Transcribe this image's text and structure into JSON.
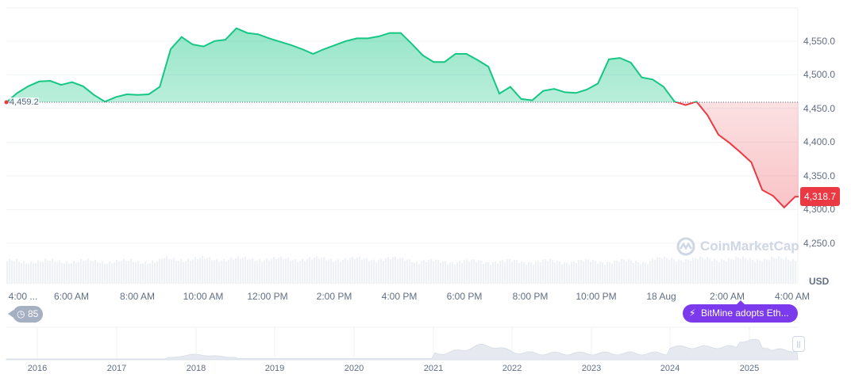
{
  "chart_data": {
    "type": "area",
    "currency_label": "USD",
    "baseline": {
      "value": 4459.2,
      "label": "4,459.2"
    },
    "current": {
      "value": 4318.7,
      "label": "4,318.7"
    },
    "y_ticks": [
      "4,550.0",
      "4,500.0",
      "4,450.0",
      "4,400.0",
      "4,350.0",
      "4,300.0",
      "4,250.0"
    ],
    "y_tick_values": [
      4550,
      4500,
      4450,
      4400,
      4350,
      4300,
      4250
    ],
    "x_ticks": [
      "4:00 ...",
      "6:00 AM",
      "8:00 AM",
      "10:00 AM",
      "12:00 PM",
      "2:00 PM",
      "4:00 PM",
      "6:00 PM",
      "8:00 PM",
      "10:00 PM",
      "18 Aug",
      "2:00 AM",
      "4:00 AM"
    ],
    "ylim": [
      4230,
      4580
    ],
    "grid": true,
    "colors": {
      "up": "#16c784",
      "down": "#ea3943",
      "grid": "#eff2f5",
      "volume": "#eff2f5"
    },
    "points": [
      [
        "03:30",
        4459
      ],
      [
        "03:50",
        4473
      ],
      [
        "04:10",
        4483
      ],
      [
        "04:30",
        4490
      ],
      [
        "04:50",
        4491
      ],
      [
        "05:10",
        4485
      ],
      [
        "05:30",
        4489
      ],
      [
        "05:50",
        4483
      ],
      [
        "06:10",
        4470
      ],
      [
        "06:30",
        4460
      ],
      [
        "06:50",
        4467
      ],
      [
        "07:10",
        4471
      ],
      [
        "07:30",
        4470
      ],
      [
        "07:50",
        4471
      ],
      [
        "08:10",
        4482
      ],
      [
        "08:30",
        4538
      ],
      [
        "08:50",
        4556
      ],
      [
        "09:10",
        4545
      ],
      [
        "09:30",
        4542
      ],
      [
        "09:50",
        4550
      ],
      [
        "10:10",
        4552
      ],
      [
        "10:30",
        4569
      ],
      [
        "10:50",
        4562
      ],
      [
        "11:10",
        4560
      ],
      [
        "11:30",
        4554
      ],
      [
        "11:50",
        4549
      ],
      [
        "12:10",
        4544
      ],
      [
        "12:30",
        4538
      ],
      [
        "12:50",
        4531
      ],
      [
        "13:10",
        4538
      ],
      [
        "13:30",
        4544
      ],
      [
        "13:50",
        4550
      ],
      [
        "14:10",
        4554
      ],
      [
        "14:30",
        4554
      ],
      [
        "14:50",
        4557
      ],
      [
        "15:10",
        4562
      ],
      [
        "15:30",
        4562
      ],
      [
        "15:50",
        4546
      ],
      [
        "16:10",
        4529
      ],
      [
        "16:30",
        4519
      ],
      [
        "16:50",
        4519
      ],
      [
        "17:10",
        4531
      ],
      [
        "17:30",
        4531
      ],
      [
        "17:50",
        4522
      ],
      [
        "18:10",
        4512
      ],
      [
        "18:30",
        4472
      ],
      [
        "18:50",
        4482
      ],
      [
        "19:10",
        4464
      ],
      [
        "19:30",
        4462
      ],
      [
        "19:50",
        4476
      ],
      [
        "20:10",
        4479
      ],
      [
        "20:30",
        4474
      ],
      [
        "20:50",
        4473
      ],
      [
        "21:10",
        4478
      ],
      [
        "21:30",
        4487
      ],
      [
        "21:50",
        4523
      ],
      [
        "22:10",
        4525
      ],
      [
        "22:30",
        4518
      ],
      [
        "22:50",
        4496
      ],
      [
        "23:10",
        4493
      ],
      [
        "23:30",
        4482
      ],
      [
        "23:50",
        4460
      ],
      [
        "00:10",
        4455
      ],
      [
        "00:30",
        4460
      ],
      [
        "00:50",
        4440
      ],
      [
        "01:10",
        4411
      ],
      [
        "01:30",
        4399
      ],
      [
        "01:50",
        4385
      ],
      [
        "02:10",
        4370
      ],
      [
        "02:30",
        4329
      ],
      [
        "02:50",
        4320
      ],
      [
        "03:10",
        4303
      ],
      [
        "03:30",
        4319
      ],
      [
        "03:45",
        4318.7
      ]
    ]
  },
  "navigator": {
    "years": [
      "2016",
      "2017",
      "2018",
      "2019",
      "2020",
      "2021",
      "2022",
      "2023",
      "2024",
      "2025"
    ]
  },
  "history_badge": {
    "count": "85",
    "icon": "history-clock-icon"
  },
  "event_pill": {
    "label": "BitMine adopts Eth...",
    "icon": "lightning-icon",
    "color": "#7c3aed"
  },
  "watermark": "CoinMarketCap"
}
